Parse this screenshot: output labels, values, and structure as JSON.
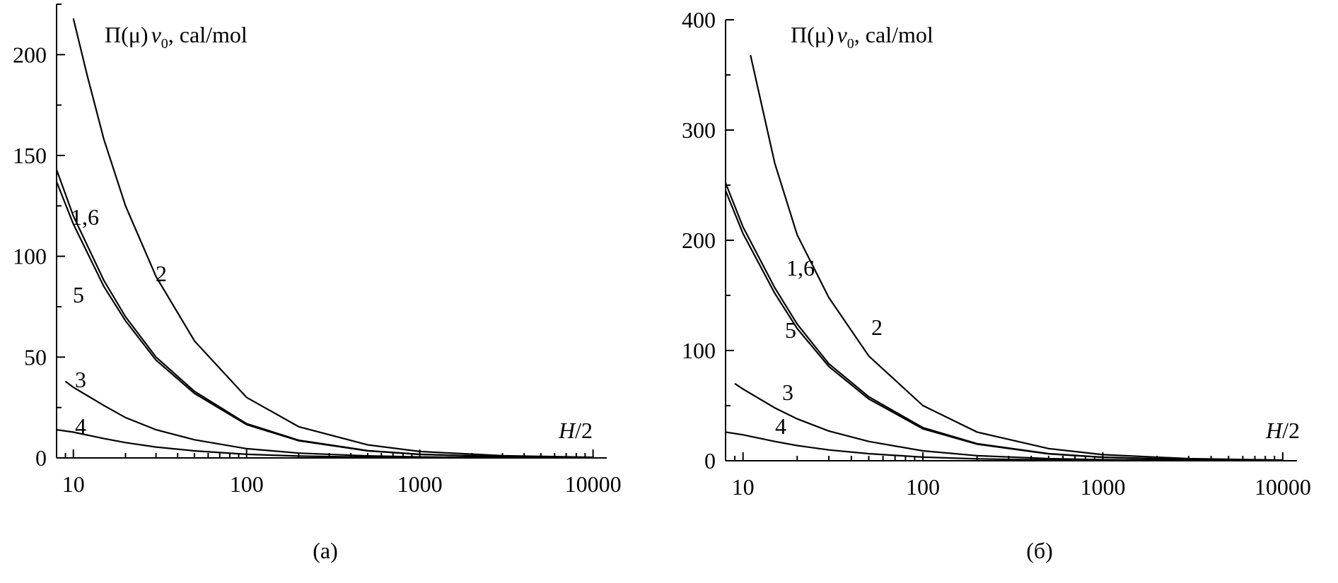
{
  "chart_data": [
    {
      "type": "line",
      "panel": "(a)",
      "caption": "(a)",
      "x_scale": "log",
      "xlim": [
        8,
        12000
      ],
      "ylim": [
        0,
        225
      ],
      "xticks": [
        10,
        100,
        1000,
        10000
      ],
      "xtick_labels": [
        "10",
        "100",
        "1000",
        "10000"
      ],
      "yticks": [
        0,
        50,
        100,
        150,
        200
      ],
      "ytick_labels": [
        "0",
        "50",
        "100",
        "150",
        "200"
      ],
      "ylabel_parts": [
        "Π(μ)",
        "v",
        "0",
        ", cal/mol"
      ],
      "xlabel_parts": [
        "H",
        "/2"
      ],
      "series": [
        {
          "name": "2",
          "label": "2",
          "x": [
            10,
            12,
            15,
            20,
            30,
            50,
            100,
            200,
            500,
            1000,
            3000,
            10000
          ],
          "y": [
            218,
            190,
            158,
            125,
            90,
            58,
            30,
            15.5,
            6.5,
            3.2,
            1.1,
            0.3
          ]
        },
        {
          "name": "1,6",
          "label": "1,6",
          "x": [
            8,
            10,
            15,
            20,
            30,
            50,
            100,
            200,
            500,
            1000,
            3000,
            10000
          ],
          "y": [
            143,
            120,
            88,
            70,
            50,
            33,
            17,
            8.8,
            3.6,
            1.8,
            0.6,
            0.18
          ]
        },
        {
          "name": "5",
          "label": "5",
          "x": [
            8,
            10,
            15,
            20,
            30,
            50,
            100,
            200,
            500,
            1000,
            3000,
            10000
          ],
          "y": [
            137,
            116,
            85,
            68,
            48.5,
            32,
            16.5,
            8.5,
            3.5,
            1.75,
            0.58,
            0.17
          ]
        },
        {
          "name": "3",
          "label": "3",
          "x": [
            9,
            10,
            15,
            20,
            30,
            50,
            100,
            200,
            500,
            1000,
            3000,
            10000
          ],
          "y": [
            38,
            35,
            26,
            20,
            14,
            9,
            4.6,
            2.4,
            1.0,
            0.5,
            0.17,
            0.05
          ]
        },
        {
          "name": "4",
          "label": "4",
          "x": [
            8,
            10,
            15,
            20,
            30,
            50,
            100,
            200,
            500,
            1000,
            3000,
            10000
          ],
          "y": [
            14,
            12.8,
            9.6,
            7.6,
            5.4,
            3.5,
            1.8,
            0.9,
            0.38,
            0.19,
            0.06,
            0.02
          ]
        }
      ]
    },
    {
      "type": "line",
      "panel": "(б)",
      "caption": "(б)",
      "x_scale": "log",
      "xlim": [
        8,
        12000
      ],
      "ylim": [
        0,
        400
      ],
      "xticks": [
        10,
        100,
        1000,
        10000
      ],
      "xtick_labels": [
        "10",
        "100",
        "1000",
        "10000"
      ],
      "yticks": [
        0,
        100,
        200,
        300,
        400
      ],
      "ytick_labels": [
        "0",
        "100",
        "200",
        "300",
        "400"
      ],
      "ylabel_parts": [
        "Π(μ)",
        "v",
        "0",
        ", cal/mol"
      ],
      "xlabel_parts": [
        "H",
        "/2"
      ],
      "series": [
        {
          "name": "2",
          "label": "2",
          "x": [
            11,
            15,
            20,
            30,
            50,
            100,
            200,
            500,
            1000,
            3000,
            10000
          ],
          "y": [
            368,
            270,
            205,
            148,
            95,
            50,
            26,
            11,
            5.5,
            1.9,
            0.55
          ]
        },
        {
          "name": "1,6",
          "label": "1,6",
          "x": [
            8,
            10,
            15,
            20,
            30,
            50,
            100,
            200,
            500,
            1000,
            3000,
            10000
          ],
          "y": [
            252,
            212,
            157,
            124,
            88,
            58,
            30,
            15.5,
            6.4,
            3.2,
            1.07,
            0.32
          ]
        },
        {
          "name": "5",
          "label": "5",
          "x": [
            8,
            10,
            15,
            20,
            30,
            50,
            100,
            200,
            500,
            1000,
            3000,
            10000
          ],
          "y": [
            245,
            206,
            152,
            120,
            85.5,
            56,
            29,
            15,
            6.2,
            3.1,
            1.04,
            0.31
          ]
        },
        {
          "name": "3",
          "label": "3",
          "x": [
            9,
            10,
            15,
            20,
            30,
            50,
            100,
            200,
            500,
            1000,
            3000,
            10000
          ],
          "y": [
            70,
            65,
            48,
            38,
            27,
            17.5,
            9,
            4.6,
            1.9,
            0.95,
            0.32,
            0.1
          ]
        },
        {
          "name": "4",
          "label": "4",
          "x": [
            8,
            10,
            15,
            20,
            30,
            50,
            100,
            200,
            500,
            1000,
            3000,
            10000
          ],
          "y": [
            26,
            23.5,
            17.5,
            13.8,
            9.8,
            6.4,
            3.3,
            1.7,
            0.7,
            0.35,
            0.12,
            0.035
          ]
        }
      ]
    }
  ]
}
